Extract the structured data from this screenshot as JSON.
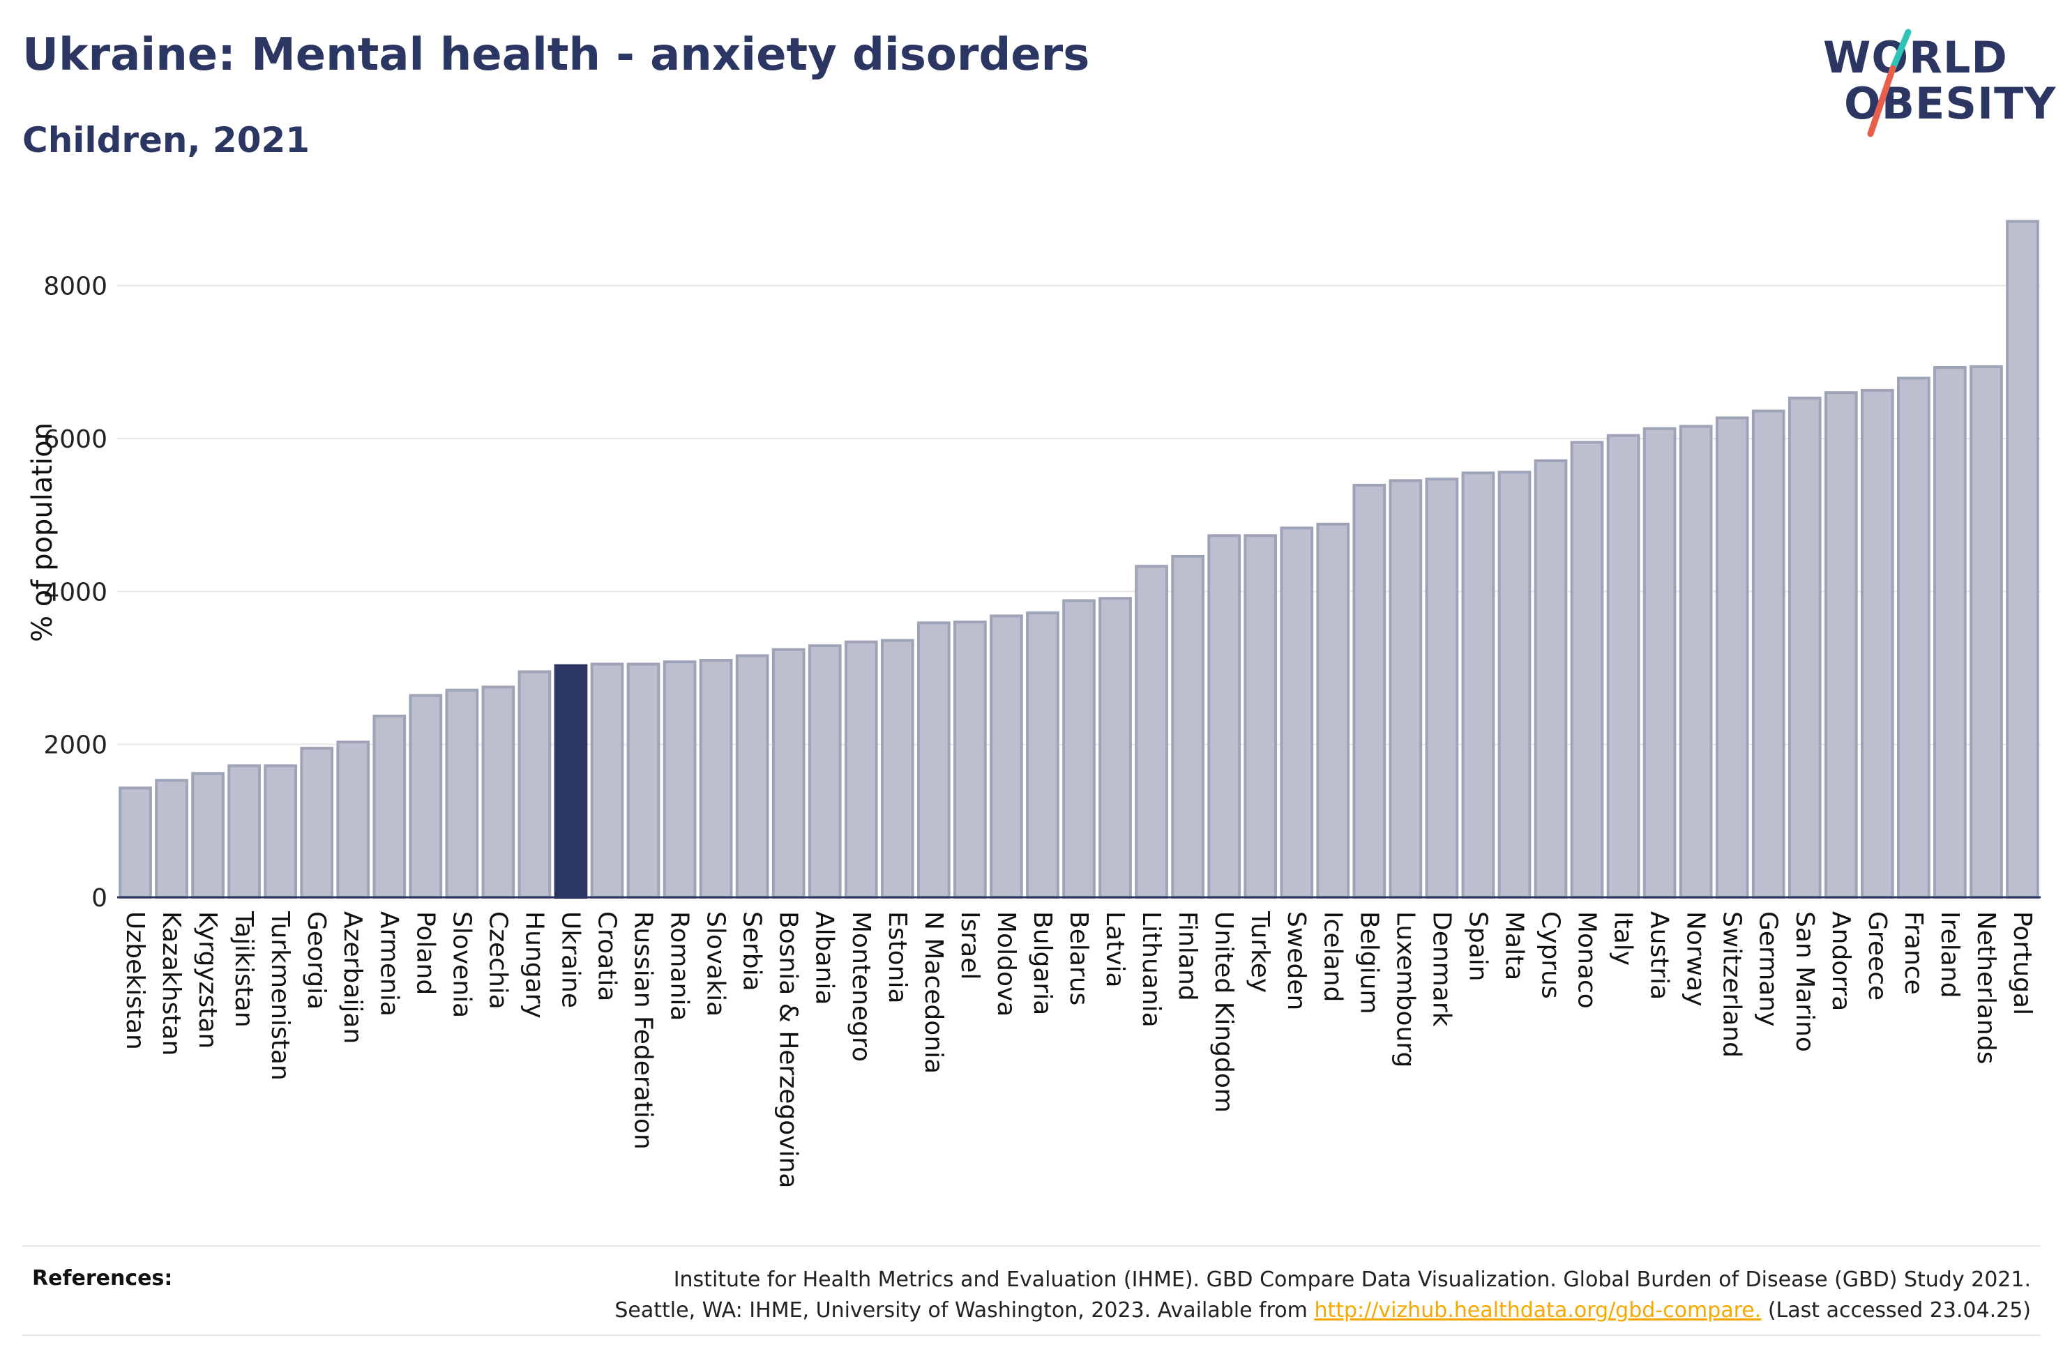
{
  "header": {
    "title": "Ukraine: Mental health - anxiety disorders",
    "subtitle": "Children, 2021"
  },
  "logo": {
    "line1": "WORLD",
    "line2": "OBESITY",
    "colors": {
      "text": "#2b3663",
      "slash_top": "#2ec4b6",
      "slash_bottom": "#e8604c"
    }
  },
  "colors": {
    "bar": "#bcc0ce",
    "bar_stroke": "#9ea3b8",
    "highlight": "#2b3663",
    "grid": "#e6e6e6",
    "axis": "#2b3663",
    "link": "#f5a800"
  },
  "chart_data": {
    "type": "bar",
    "title": "Ukraine: Mental health - anxiety disorders",
    "subtitle": "Children, 2021",
    "xlabel": "",
    "ylabel": "% of population",
    "ylim": [
      0,
      9000
    ],
    "yticks": [
      0,
      2000,
      4000,
      6000,
      8000
    ],
    "grid": true,
    "highlight": "Ukraine",
    "categories": [
      "Uzbekistan",
      "Kazakhstan",
      "Kyrgyzstan",
      "Tajikistan",
      "Turkmenistan",
      "Georgia",
      "Azerbaijan",
      "Armenia",
      "Poland",
      "Slovenia",
      "Czechia",
      "Hungary",
      "Ukraine",
      "Croatia",
      "Russian Federation",
      "Romania",
      "Slovakia",
      "Serbia",
      "Bosnia & Herzegovina",
      "Albania",
      "Montenegro",
      "Estonia",
      "N Macedonia",
      "Israel",
      "Moldova",
      "Bulgaria",
      "Belarus",
      "Latvia",
      "Lithuania",
      "Finland",
      "United Kingdom",
      "Turkey",
      "Sweden",
      "Iceland",
      "Belgium",
      "Luxembourg",
      "Denmark",
      "Spain",
      "Malta",
      "Cyprus",
      "Monaco",
      "Italy",
      "Austria",
      "Norway",
      "Switzerland",
      "Germany",
      "San Marino",
      "Andorra",
      "Greece",
      "France",
      "Ireland",
      "Netherlands",
      "Portugal"
    ],
    "values": [
      1430,
      1530,
      1620,
      1720,
      1720,
      1950,
      2030,
      2370,
      2640,
      2710,
      2750,
      2950,
      3030,
      3050,
      3050,
      3080,
      3100,
      3160,
      3240,
      3290,
      3340,
      3360,
      3590,
      3600,
      3680,
      3720,
      3880,
      3910,
      4330,
      4460,
      4730,
      4730,
      4830,
      4880,
      5390,
      5450,
      5470,
      5550,
      5560,
      5710,
      5950,
      6040,
      6130,
      6160,
      6270,
      6360,
      6530,
      6600,
      6630,
      6790,
      6930,
      6940,
      8840
    ]
  },
  "references": {
    "label": "References:",
    "line1": "Institute for Health Metrics and Evaluation (IHME). GBD Compare Data Visualization. Global Burden of Disease (GBD) Study 2021.",
    "line2_prefix": "Seattle, WA: IHME, University of Washington, 2023. Available from",
    "link": "http://vizhub.healthdata.org/gbd-compare.",
    "line2_suffix": "(Last accessed 23.04.25)"
  }
}
